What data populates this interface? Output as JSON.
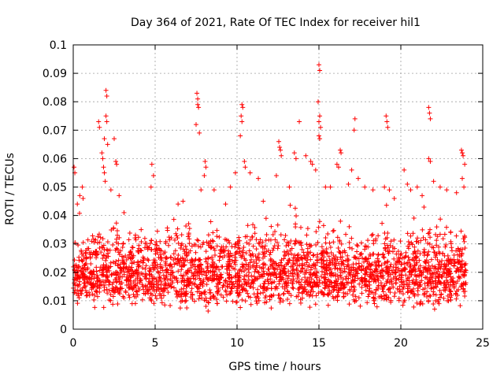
{
  "chart_data": {
    "type": "scatter",
    "title": "Day 364 of 2021, Rate Of TEC Index for receiver hil1",
    "xlabel": "GPS time / hours",
    "ylabel": "ROTI / TECUs",
    "xlim": [
      0,
      25
    ],
    "ylim": [
      0,
      0.1
    ],
    "x_ticks": [
      0,
      5,
      10,
      15,
      20,
      25
    ],
    "x_tick_labels": [
      "0",
      "5",
      "10",
      "15",
      "20",
      "25"
    ],
    "y_ticks": [
      0,
      0.01,
      0.02,
      0.03,
      0.04,
      0.05,
      0.06,
      0.07,
      0.08,
      0.09,
      0.1
    ],
    "y_tick_labels": [
      "0",
      "0.01",
      "0.02",
      "0.03",
      "0.04",
      "0.05",
      "0.06",
      "0.07",
      "0.08",
      "0.09",
      "0.1"
    ],
    "grid": true,
    "marker": "plus",
    "marker_color": "#ff0000",
    "series": [
      {
        "name": "ROTI hil1",
        "points": [
          [
            0.05,
            0.057
          ],
          [
            0.1,
            0.055
          ],
          [
            0.25,
            0.044
          ],
          [
            0.4,
            0.047
          ],
          [
            0.55,
            0.05
          ],
          [
            0.6,
            0.046
          ],
          [
            1.55,
            0.073
          ],
          [
            1.6,
            0.071
          ],
          [
            1.75,
            0.062
          ],
          [
            1.8,
            0.06
          ],
          [
            1.85,
            0.057
          ],
          [
            1.9,
            0.055
          ],
          [
            1.95,
            0.052
          ],
          [
            2.0,
            0.084
          ],
          [
            2.05,
            0.082
          ],
          [
            2.0,
            0.075
          ],
          [
            2.05,
            0.073
          ],
          [
            1.9,
            0.067
          ],
          [
            2.1,
            0.065
          ],
          [
            2.3,
            0.049
          ],
          [
            2.5,
            0.067
          ],
          [
            2.6,
            0.059
          ],
          [
            2.65,
            0.058
          ],
          [
            2.8,
            0.047
          ],
          [
            3.1,
            0.041
          ],
          [
            4.8,
            0.058
          ],
          [
            4.9,
            0.054
          ],
          [
            4.75,
            0.05
          ],
          [
            6.4,
            0.044
          ],
          [
            6.7,
            0.045
          ],
          [
            7.55,
            0.083
          ],
          [
            7.6,
            0.081
          ],
          [
            7.6,
            0.079
          ],
          [
            7.65,
            0.078
          ],
          [
            7.5,
            0.072
          ],
          [
            7.7,
            0.069
          ],
          [
            7.8,
            0.049
          ],
          [
            8.05,
            0.059
          ],
          [
            8.1,
            0.057
          ],
          [
            8.0,
            0.054
          ],
          [
            8.6,
            0.049
          ],
          [
            9.3,
            0.044
          ],
          [
            9.6,
            0.05
          ],
          [
            9.9,
            0.055
          ],
          [
            10.3,
            0.079
          ],
          [
            10.35,
            0.078
          ],
          [
            10.25,
            0.075
          ],
          [
            10.3,
            0.073
          ],
          [
            10.2,
            0.068
          ],
          [
            10.45,
            0.059
          ],
          [
            10.5,
            0.057
          ],
          [
            10.8,
            0.055
          ],
          [
            11.3,
            0.053
          ],
          [
            11.6,
            0.045
          ],
          [
            12.4,
            0.054
          ],
          [
            12.55,
            0.066
          ],
          [
            12.6,
            0.064
          ],
          [
            12.65,
            0.063
          ],
          [
            12.7,
            0.061
          ],
          [
            13.2,
            0.05
          ],
          [
            13.5,
            0.062
          ],
          [
            13.6,
            0.06
          ],
          [
            13.8,
            0.073
          ],
          [
            14.2,
            0.061
          ],
          [
            14.5,
            0.059
          ],
          [
            14.6,
            0.058
          ],
          [
            14.8,
            0.056
          ],
          [
            15.0,
            0.093
          ],
          [
            15.05,
            0.091
          ],
          [
            14.95,
            0.08
          ],
          [
            15.05,
            0.075
          ],
          [
            15.0,
            0.073
          ],
          [
            15.1,
            0.071
          ],
          [
            15.0,
            0.068
          ],
          [
            15.05,
            0.067
          ],
          [
            15.4,
            0.05
          ],
          [
            15.7,
            0.05
          ],
          [
            16.3,
            0.063
          ],
          [
            16.35,
            0.062
          ],
          [
            16.1,
            0.058
          ],
          [
            16.2,
            0.057
          ],
          [
            16.8,
            0.051
          ],
          [
            17.2,
            0.074
          ],
          [
            17.15,
            0.07
          ],
          [
            17.0,
            0.056
          ],
          [
            17.4,
            0.053
          ],
          [
            17.8,
            0.05
          ],
          [
            18.3,
            0.049
          ],
          [
            19.1,
            0.075
          ],
          [
            19.15,
            0.073
          ],
          [
            19.2,
            0.071
          ],
          [
            19.0,
            0.05
          ],
          [
            19.3,
            0.049
          ],
          [
            19.6,
            0.046
          ],
          [
            20.2,
            0.056
          ],
          [
            20.4,
            0.051
          ],
          [
            20.6,
            0.049
          ],
          [
            21.0,
            0.05
          ],
          [
            21.3,
            0.047
          ],
          [
            21.7,
            0.078
          ],
          [
            21.75,
            0.076
          ],
          [
            21.8,
            0.074
          ],
          [
            21.7,
            0.06
          ],
          [
            21.8,
            0.059
          ],
          [
            22.0,
            0.052
          ],
          [
            22.4,
            0.05
          ],
          [
            22.8,
            0.049
          ],
          [
            23.4,
            0.048
          ],
          [
            23.7,
            0.063
          ],
          [
            23.75,
            0.062
          ],
          [
            23.8,
            0.061
          ],
          [
            23.9,
            0.058
          ],
          [
            23.75,
            0.053
          ],
          [
            23.85,
            0.05
          ]
        ]
      }
    ]
  }
}
